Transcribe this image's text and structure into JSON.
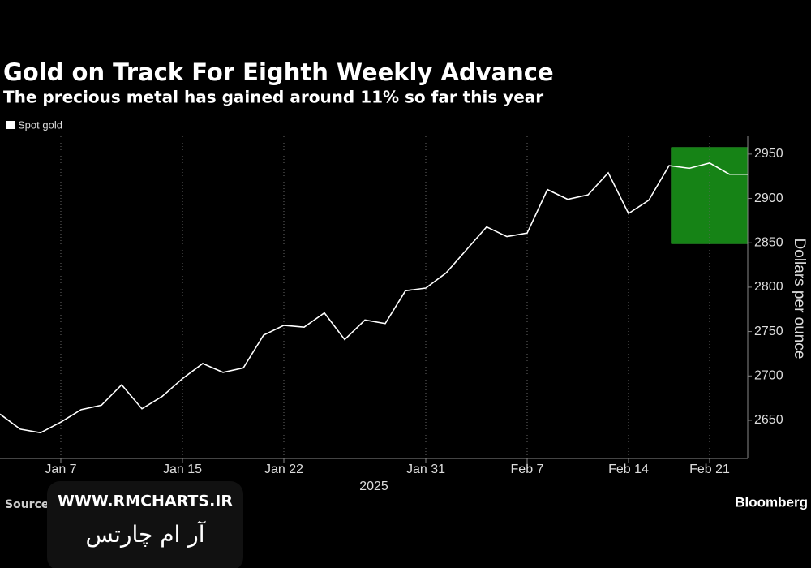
{
  "chart_data": {
    "type": "line",
    "title": "Gold on Track For Eighth Weekly Advance",
    "subtitle": "The precious metal has gained around 11% so far this year",
    "y_label": "Dollars per ounce",
    "x_label": "2025",
    "categories": [
      null,
      null,
      null,
      "Jan 7",
      null,
      null,
      null,
      null,
      null,
      "Jan 15",
      null,
      null,
      null,
      null,
      "Jan 22",
      null,
      null,
      null,
      null,
      null,
      null,
      "Jan 31",
      null,
      null,
      null,
      null,
      "Feb 7",
      null,
      null,
      null,
      null,
      "Feb 14",
      null,
      null,
      null,
      "Feb 21",
      null
    ],
    "series": [
      {
        "name": "Spot gold",
        "color": "#ffffff",
        "values": [
          2657,
          2640,
          2636,
          2648,
          2662,
          2667,
          2690,
          2663,
          2677,
          2697,
          2714,
          2704,
          2709,
          2746,
          2757,
          2755,
          2771,
          2741,
          2763,
          2759,
          2796,
          2799,
          2816,
          2842,
          2868,
          2857,
          2861,
          2910,
          2899,
          2904,
          2929,
          2883,
          2898,
          2937,
          2934,
          2940,
          2927
        ]
      }
    ],
    "ylim": [
      2607,
      2970
    ],
    "yticks": [
      2650,
      2700,
      2750,
      2800,
      2850,
      2900,
      2950
    ],
    "grid": true,
    "source": "Source: Bloomberg",
    "brand": "Bloomberg"
  },
  "watermark": {
    "url": "WWW.RMCHARTS.IR",
    "text": "آر ام چارتس"
  }
}
